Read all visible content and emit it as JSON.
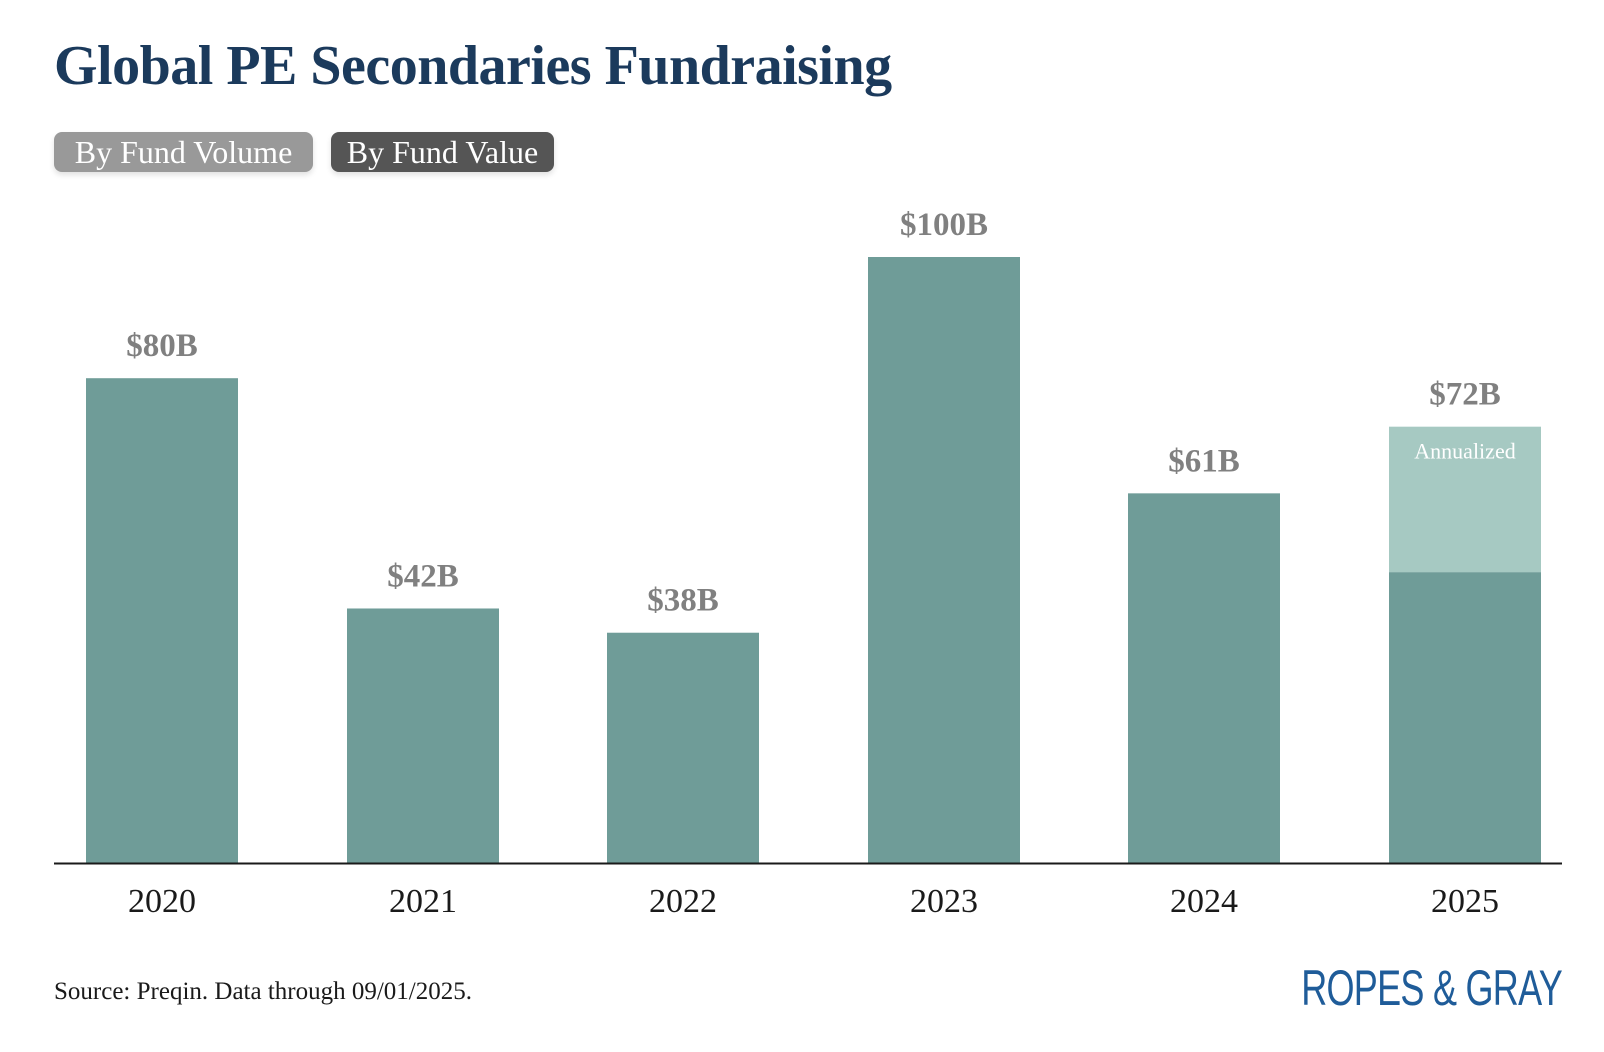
{
  "title": "Global PE Secondaries Fundraising",
  "toggles": {
    "volume_label": "By Fund Volume",
    "value_label": "By Fund Value",
    "active": "value"
  },
  "colors": {
    "bar": "#6f9c98",
    "annualized": "#a6c9c2",
    "label": "#808080",
    "axis": "#1a1a1a"
  },
  "chart_data": {
    "type": "bar",
    "title": "Global PE Secondaries Fundraising",
    "xlabel": "",
    "ylabel": "",
    "ylim": [
      0,
      100
    ],
    "grid": false,
    "categories": [
      "2020",
      "2021",
      "2022",
      "2023",
      "2024",
      "2025"
    ],
    "series": [
      {
        "name": "Fund Value",
        "values": [
          80,
          42,
          38,
          100,
          61,
          48
        ]
      },
      {
        "name": "Annualized",
        "values": [
          0,
          0,
          0,
          0,
          0,
          24
        ]
      }
    ],
    "totals": [
      80,
      42,
      38,
      100,
      61,
      72
    ],
    "data_labels": [
      "$80B",
      "$42B",
      "$38B",
      "$100B",
      "$61B",
      "$72B"
    ],
    "annotation": "Annualized"
  },
  "footer": {
    "source": "Source: Preqin. Data through 09/01/2025.",
    "logo_text": "ROPES & GRAY"
  }
}
